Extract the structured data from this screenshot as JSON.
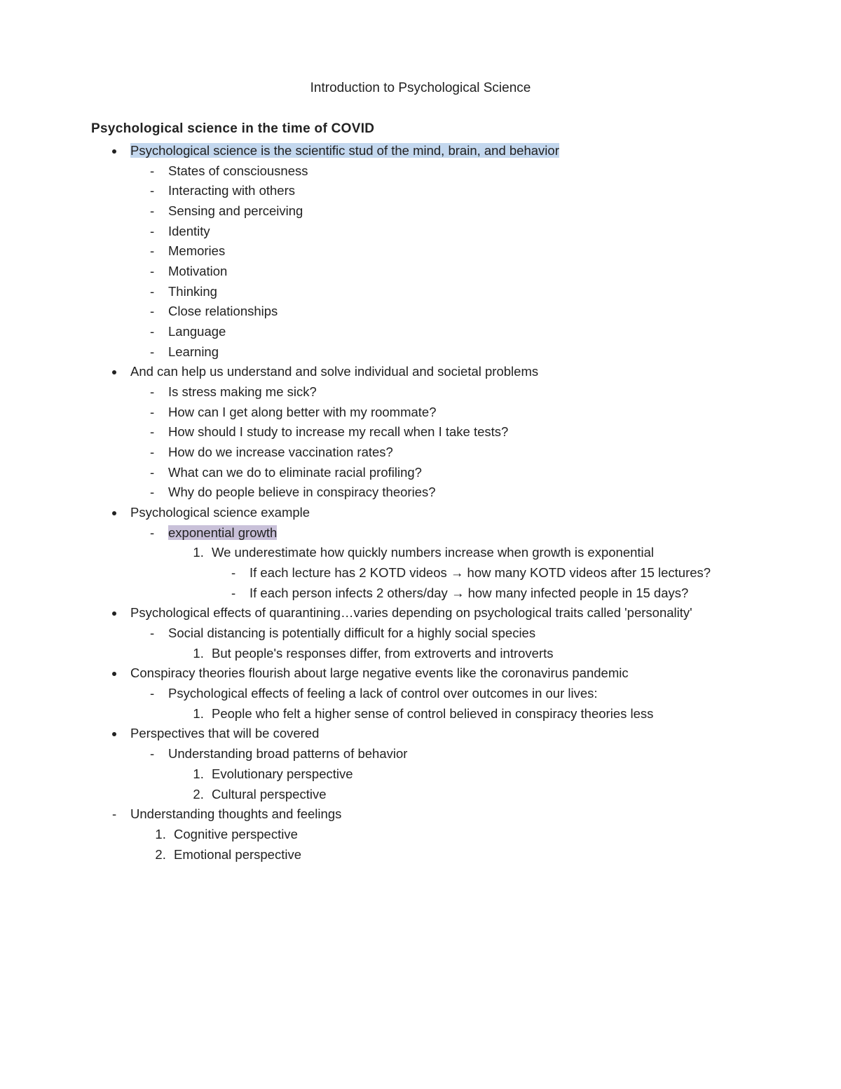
{
  "title": "Introduction to Psychological Science",
  "section_heading": "Psychological science in the time of COVID",
  "highlight_colors": {
    "blue": "#c3d7ee",
    "purple": "#c9c1d9"
  },
  "b1": {
    "text": "Psychological science is the scientific stud of the mind, brain, and behavior",
    "sub": [
      "States of consciousness",
      "Interacting with others",
      "Sensing and perceiving",
      "Identity",
      "Memories",
      "Motivation",
      "Thinking",
      "Close relationships",
      "Language",
      "Learning"
    ]
  },
  "b2": {
    "text": "And can help us understand and solve individual and societal problems",
    "sub": [
      "Is stress making me sick?",
      "How can I get along better with my roommate?",
      "How should I study to increase my recall when I take tests?",
      "How do we increase vaccination rates?",
      "What can we do to eliminate racial profiling?",
      "Why do people believe in conspiracy theories?"
    ]
  },
  "b3": {
    "text": "Psychological science example",
    "sub1": "exponential growth",
    "num1": "We underestimate how quickly numbers increase when growth is exponential",
    "num1_sub": [
      "If each lecture has 2 KOTD videos → how many KOTD videos after 15 lectures?",
      "If each person infects 2 others/day → how many infected people in 15 days?"
    ]
  },
  "b4": {
    "text": "Psychological effects of quarantining…varies depending on psychological traits called 'personality'",
    "sub1": "Social distancing is potentially difficult for a highly social species",
    "num1": "But people's responses differ, from extroverts and introverts"
  },
  "b5": {
    "text": "Conspiracy theories flourish about large negative events like the coronavirus pandemic",
    "sub1": "Psychological effects of feeling a lack of control over outcomes in our lives:",
    "num1": "People who felt a higher sense of control believed in conspiracy theories less"
  },
  "b6": {
    "text": "Perspectives that will be covered",
    "sub1": "Understanding broad patterns of behavior",
    "nums": [
      "Evolutionary perspective",
      "Cultural perspective"
    ]
  },
  "d7": {
    "text": "Understanding thoughts and feelings",
    "nums": [
      "Cognitive perspective",
      "Emotional perspective"
    ]
  }
}
